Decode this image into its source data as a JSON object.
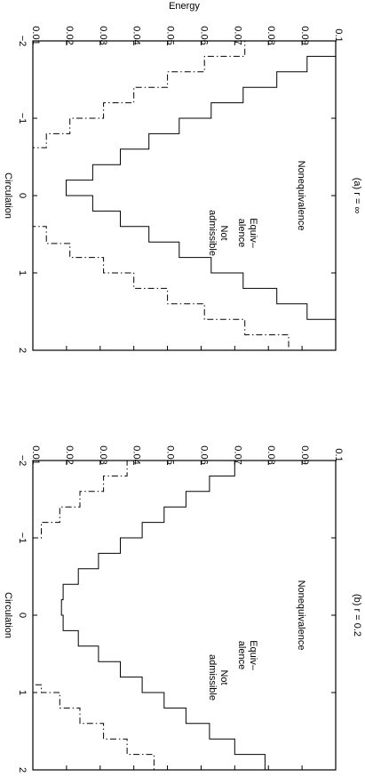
{
  "chart_data": [
    {
      "type": "line",
      "panel_label": "(a)  r = ∞",
      "xlabel": "Circulation",
      "ylabel": "Energy",
      "xlim": [
        -2,
        2
      ],
      "ylim": [
        0.01,
        0.1
      ],
      "x_ticks": [
        "−2",
        "−1",
        "0",
        "1",
        "2"
      ],
      "y_ticks": [
        "0.01",
        "0.02",
        "0.03",
        "0.04",
        "0.05",
        "0.06",
        "0.07",
        "0.08",
        "0.09",
        "0.1"
      ],
      "annotations": [
        "Nonequivalence",
        "Equiv–",
        "alence",
        "Not",
        "admissible"
      ],
      "series": [
        {
          "style": "solid",
          "x": [
            -1.8,
            -1.6,
            -1.4,
            -1.2,
            -1.0,
            -0.8,
            -0.6,
            -0.4,
            -0.2,
            0.0,
            0.2,
            0.4,
            0.6,
            0.8,
            1.0,
            1.2,
            1.4,
            1.6,
            1.8
          ],
          "y": [
            0.1,
            0.0915,
            0.0825,
            0.0725,
            0.063,
            0.0535,
            0.0445,
            0.036,
            0.0278,
            0.0199,
            0.0278,
            0.036,
            0.0445,
            0.0535,
            0.063,
            0.0725,
            0.0825,
            0.0915,
            0.1
          ]
        },
        {
          "style": "dash-dot",
          "x": [
            -2.0,
            -1.8,
            -1.6,
            -1.4,
            -1.2,
            -1.0,
            -0.8,
            -0.62,
            -0.4,
            -0.2,
            0.0,
            0.2,
            0.4,
            0.62,
            0.8,
            1.0,
            1.2,
            1.4,
            1.6,
            1.8,
            2.0
          ],
          "y": [
            0.086,
            0.073,
            0.061,
            0.05,
            0.04,
            0.031,
            0.021,
            0.014,
            0.01,
            0.01,
            0.01,
            0.01,
            0.01,
            0.014,
            0.021,
            0.031,
            0.04,
            0.05,
            0.061,
            0.073,
            0.086
          ]
        }
      ]
    },
    {
      "type": "line",
      "panel_label": "(b)  r = 0.2",
      "xlabel": "Circulation",
      "ylabel": "",
      "xlim": [
        -2,
        2
      ],
      "ylim": [
        0.01,
        0.1
      ],
      "x_ticks": [
        "−2",
        "−1",
        "0",
        "1",
        "2"
      ],
      "y_ticks": [
        "0.01",
        "0.02",
        "0.03",
        "0.04",
        "0.05",
        "0.06",
        "0.07",
        "0.08",
        "0.09",
        "0.1"
      ],
      "annotations": [
        "Nonequivalence",
        "Equiv–",
        "alence",
        "Not",
        "admissible"
      ],
      "series": [
        {
          "style": "solid",
          "x": [
            -2.0,
            -1.8,
            -1.6,
            -1.4,
            -1.2,
            -1.0,
            -0.8,
            -0.6,
            -0.4,
            -0.2,
            0.0,
            0.2,
            0.4,
            0.6,
            0.8,
            1.0,
            1.2,
            1.4,
            1.6,
            1.8,
            2.0
          ],
          "y": [
            0.079,
            0.07,
            0.0625,
            0.0555,
            0.049,
            0.0425,
            0.036,
            0.0295,
            0.0235,
            0.019,
            0.0185,
            0.019,
            0.0235,
            0.0295,
            0.036,
            0.0425,
            0.049,
            0.0555,
            0.0625,
            0.07,
            0.079
          ]
        },
        {
          "style": "dash-dot",
          "x": [
            -2.0,
            -1.8,
            -1.6,
            -1.4,
            -1.2,
            -1.0,
            -0.9,
            0.9,
            1.0,
            1.2,
            1.4,
            1.6,
            1.8,
            2.0
          ],
          "y": [
            0.046,
            0.038,
            0.031,
            0.024,
            0.018,
            0.0125,
            0.01,
            0.01,
            0.0125,
            0.018,
            0.024,
            0.031,
            0.038,
            0.046
          ]
        }
      ]
    }
  ]
}
